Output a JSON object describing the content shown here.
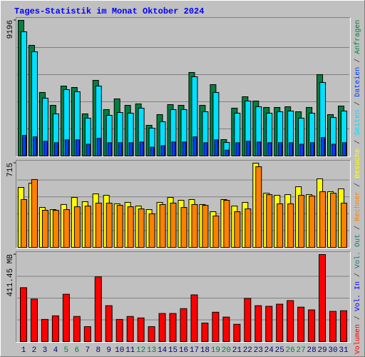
{
  "title": "Tages-Statistik im Monat Oktober 2024",
  "separator": "/",
  "category_colors": {
    "default": "#000080",
    "weekend": "#008040",
    "weekend_categories": [
      "5",
      "6",
      "12",
      "13",
      "19",
      "20",
      "26",
      "27"
    ]
  },
  "chart_data": [
    {
      "type": "bar",
      "ylim": [
        0,
        9196
      ],
      "yticks": [
        9196
      ],
      "categories": [
        "1",
        "2",
        "3",
        "4",
        "5",
        "6",
        "7",
        "8",
        "9",
        "10",
        "11",
        "12",
        "13",
        "14",
        "15",
        "16",
        "17",
        "18",
        "19",
        "20",
        "21",
        "22",
        "23",
        "24",
        "25",
        "26",
        "27",
        "28",
        "29",
        "30",
        "31"
      ],
      "series": [
        {
          "name": "Anfragen",
          "color": "#008040",
          "values": [
            9196,
            7502,
            4308,
            3436,
            4743,
            4646,
            2856,
            5130,
            3146,
            3872,
            3436,
            3533,
            2081,
            2807,
            3485,
            3436,
            5663,
            3436,
            4840,
            1113,
            3243,
            4017,
            3727,
            3291,
            3291,
            3340,
            3001,
            3291,
            5518,
            2807,
            3388
          ]
        },
        {
          "name": "Dateien",
          "color": "#0040ff",
          "values": [
            1400,
            1300,
            1000,
            900,
            1100,
            1100,
            800,
            1200,
            900,
            900,
            900,
            950,
            600,
            700,
            950,
            950,
            1300,
            900,
            1100,
            400,
            900,
            1000,
            950,
            900,
            900,
            900,
            800,
            900,
            1250,
            800,
            900
          ]
        },
        {
          "name": "Seiten",
          "color": "#00e0ff",
          "values": [
            8422,
            7066,
            3920,
            2856,
            4501,
            4356,
            2565,
            4743,
            2759,
            2952,
            2904,
            3243,
            1888,
            2323,
            3146,
            3146,
            5372,
            3001,
            4308,
            920,
            2904,
            3727,
            3340,
            2904,
            3001,
            3049,
            2565,
            2904,
            4985,
            2613,
            3049
          ]
        }
      ]
    },
    {
      "type": "bar",
      "ylim": [
        0,
        715
      ],
      "yticks": [
        715
      ],
      "series": [
        {
          "name": "Besuche",
          "color": "#ffff00",
          "values": [
            509,
            545,
            339,
            321,
            364,
            424,
            388,
            454,
            442,
            370,
            382,
            351,
            321,
            382,
            424,
            400,
            406,
            364,
            303,
            406,
            351,
            382,
            715,
            460,
            442,
            448,
            515,
            448,
            582,
            473,
            497
          ]
        },
        {
          "name": "Rechner",
          "color": "#ff8000",
          "values": [
            406,
            576,
            315,
            315,
            321,
            345,
            351,
            376,
            376,
            357,
            345,
            327,
            285,
            364,
            376,
            339,
            364,
            357,
            267,
            400,
            303,
            327,
            685,
            448,
            370,
            370,
            442,
            436,
            473,
            460,
            376
          ]
        }
      ]
    },
    {
      "type": "bar",
      "ylim": [
        0,
        411.45
      ],
      "yticks": [
        {
          "value": 411.45,
          "label": "411.45 MB"
        }
      ],
      "series": [
        {
          "name": "Volumen",
          "color": "#ff0000",
          "values": [
            255,
            201,
            105,
            122,
            224,
            119,
            71,
            306,
            170,
            105,
            119,
            112,
            71,
            133,
            133,
            156,
            221,
            88,
            139,
            116,
            82,
            204,
            170,
            167,
            177,
            194,
            163,
            150,
            411.45,
            143,
            146
          ]
        }
      ],
      "legend": [
        {
          "name": "Vol. In",
          "color": "#0000ff"
        },
        {
          "name": "Vol. Out",
          "color": "#008080"
        }
      ]
    }
  ]
}
